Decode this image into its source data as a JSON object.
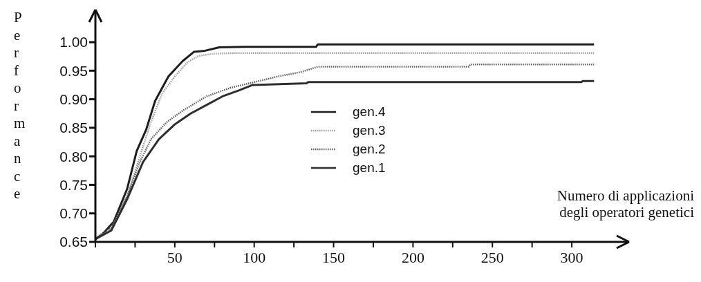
{
  "chart_data": {
    "type": "line",
    "ylabel": "Performance",
    "xlabel": "Numero di applicazioni\ndegli operatori genetici",
    "xlim": [
      0,
      330
    ],
    "xticks": [
      {
        "value": 0,
        "label": null
      },
      {
        "value": 25,
        "label": null
      },
      50,
      {
        "value": 75,
        "label": null
      },
      100,
      {
        "value": 125,
        "label": null
      },
      150,
      {
        "value": 175,
        "label": null
      },
      200,
      {
        "value": 225,
        "label": null
      },
      250,
      {
        "value": 275,
        "label": null
      },
      300
    ],
    "ylim": [
      0.65,
      1.04
    ],
    "yticks": [
      0.65,
      {
        "value": 0.7,
        "label": "0.70"
      },
      0.75,
      {
        "value": 0.8,
        "label": "0.80"
      },
      0.85,
      {
        "value": 0.9,
        "label": "0.90"
      },
      0.95,
      {
        "value": 1,
        "label": "1.00"
      }
    ],
    "grid": false,
    "legend": "center",
    "marker": "none",
    "series": [
      {
        "name": "gen.4",
        "color": "#1e1e1e",
        "line_style": "solid",
        "x": [
          0,
          4,
          11.5,
          20,
          26,
          32,
          37.6,
          46,
          55,
          62,
          69,
          78,
          94,
          139,
          140,
          314
        ],
        "values": [
          0.655,
          0.662,
          0.685,
          0.743,
          0.809,
          0.847,
          0.897,
          0.94,
          0.967,
          0.983,
          0.985,
          0.991,
          0.992,
          0.992,
          0.996,
          0.996
        ]
      },
      {
        "name": "gen.3",
        "color": "#9a9a9a",
        "line_style": "dotted",
        "x": [
          0,
          10,
          20,
          28,
          35,
          42,
          50,
          58,
          65,
          75,
          90,
          314
        ],
        "values": [
          0.655,
          0.672,
          0.73,
          0.8,
          0.86,
          0.91,
          0.94,
          0.965,
          0.976,
          0.98,
          0.981,
          0.981
        ]
      },
      {
        "name": "gen.2",
        "color": "#5a5a5a",
        "line_style": "dotted",
        "x": [
          0,
          10,
          20,
          28,
          35,
          45,
          55,
          70,
          85,
          100,
          115,
          130,
          140,
          235,
          236,
          314
        ],
        "values": [
          0.657,
          0.675,
          0.73,
          0.79,
          0.83,
          0.86,
          0.88,
          0.905,
          0.92,
          0.93,
          0.94,
          0.948,
          0.957,
          0.957,
          0.961,
          0.961
        ]
      },
      {
        "name": "gen.1",
        "color": "#2e2e2e",
        "line_style": "solid",
        "x": [
          0,
          10,
          20,
          30,
          40,
          50,
          60,
          70,
          80,
          90,
          99,
          133,
          134,
          306,
          307,
          314
        ],
        "values": [
          0.655,
          0.67,
          0.725,
          0.79,
          0.83,
          0.856,
          0.875,
          0.89,
          0.905,
          0.915,
          0.925,
          0.928,
          0.93,
          0.93,
          0.932,
          0.932
        ]
      }
    ]
  }
}
